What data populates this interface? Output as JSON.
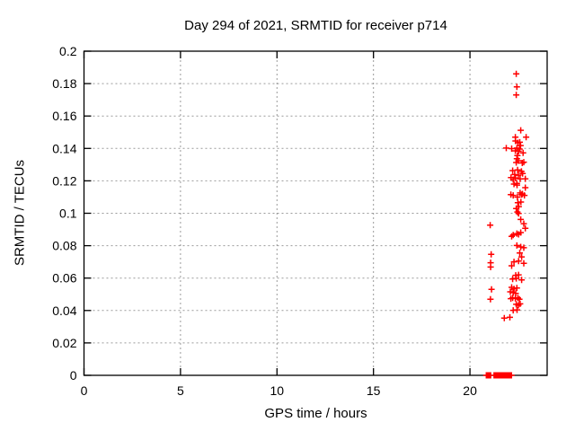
{
  "chart_data": {
    "type": "scatter",
    "title": "Day 294 of 2021, SRMTID for receiver p714",
    "xlabel": "GPS time / hours",
    "ylabel": "SRMTID / TECUs",
    "xlim": [
      0,
      24
    ],
    "ylim": [
      0,
      0.2
    ],
    "xticks": [
      0,
      5,
      10,
      15,
      20
    ],
    "xtick_labels": [
      "0",
      "5",
      "10",
      "15",
      "20"
    ],
    "yticks": [
      0,
      0.02,
      0.04,
      0.06,
      0.08,
      0.1,
      0.12,
      0.14,
      0.16,
      0.18,
      0.2
    ],
    "ytick_labels": [
      "0",
      "0.02",
      "0.04",
      "0.06",
      "0.08",
      "0.1",
      "0.12",
      "0.14",
      "0.16",
      "0.18",
      "0.2"
    ],
    "grid": true,
    "legend_position": "none",
    "marker": "plus",
    "marker_color": "#ff0000",
    "axis_color": "#000000",
    "grid_color": "#9a9a9a",
    "series": [
      {
        "name": "SRMTID",
        "points": [
          [
            22.4,
            0.186
          ],
          [
            22.43,
            0.178
          ],
          [
            22.4,
            0.173
          ],
          [
            22.63,
            0.1512
          ],
          [
            22.35,
            0.147
          ],
          [
            22.91,
            0.147
          ],
          [
            22.36,
            0.1446
          ],
          [
            22.58,
            0.1438
          ],
          [
            22.48,
            0.1435
          ],
          [
            22.62,
            0.1418
          ],
          [
            21.88,
            0.1402
          ],
          [
            22.43,
            0.1402
          ],
          [
            22.16,
            0.1399
          ],
          [
            22.57,
            0.1396
          ],
          [
            22.35,
            0.1385
          ],
          [
            22.52,
            0.1383
          ],
          [
            22.75,
            0.1373
          ],
          [
            22.46,
            0.1356
          ],
          [
            22.43,
            0.1337
          ],
          [
            22.51,
            0.1324
          ],
          [
            22.79,
            0.1315
          ],
          [
            22.4,
            0.1313
          ],
          [
            22.71,
            0.131
          ],
          [
            22.47,
            0.1267
          ],
          [
            22.21,
            0.1263
          ],
          [
            22.67,
            0.1258
          ],
          [
            22.73,
            0.1245
          ],
          [
            22.32,
            0.1239
          ],
          [
            22.51,
            0.1235
          ],
          [
            22.13,
            0.122
          ],
          [
            22.36,
            0.1217
          ],
          [
            22.87,
            0.1213
          ],
          [
            22.6,
            0.1212
          ],
          [
            22.24,
            0.1208
          ],
          [
            22.43,
            0.1184
          ],
          [
            22.28,
            0.118
          ],
          [
            22.44,
            0.1174
          ],
          [
            22.87,
            0.1158
          ],
          [
            22.6,
            0.1125
          ],
          [
            22.72,
            0.1119
          ],
          [
            22.12,
            0.1115
          ],
          [
            22.68,
            0.1115
          ],
          [
            22.24,
            0.111
          ],
          [
            22.82,
            0.111
          ],
          [
            22.46,
            0.11
          ],
          [
            22.64,
            0.1069
          ],
          [
            22.48,
            0.1065
          ],
          [
            22.53,
            0.1041
          ],
          [
            22.4,
            0.1029
          ],
          [
            22.46,
            0.1008
          ],
          [
            22.52,
            0.0999
          ],
          [
            22.63,
            0.0962
          ],
          [
            22.79,
            0.0936
          ],
          [
            21.05,
            0.0927
          ],
          [
            22.87,
            0.0907
          ],
          [
            22.63,
            0.0881
          ],
          [
            22.43,
            0.0875
          ],
          [
            22.52,
            0.087
          ],
          [
            22.24,
            0.0866
          ],
          [
            22.16,
            0.0857
          ],
          [
            22.43,
            0.0801
          ],
          [
            22.63,
            0.0792
          ],
          [
            22.79,
            0.0787
          ],
          [
            22.58,
            0.0755
          ],
          [
            21.1,
            0.0746
          ],
          [
            22.68,
            0.0731
          ],
          [
            22.52,
            0.0705
          ],
          [
            22.28,
            0.07
          ],
          [
            21.07,
            0.0695
          ],
          [
            22.79,
            0.0691
          ],
          [
            22.16,
            0.0676
          ],
          [
            21.07,
            0.0668
          ],
          [
            22.52,
            0.062
          ],
          [
            22.37,
            0.0617
          ],
          [
            22.4,
            0.0598
          ],
          [
            22.21,
            0.0594
          ],
          [
            22.68,
            0.0589
          ],
          [
            22.16,
            0.0543
          ],
          [
            22.43,
            0.0539
          ],
          [
            21.12,
            0.053
          ],
          [
            22.28,
            0.0533
          ],
          [
            22.09,
            0.0515
          ],
          [
            22.24,
            0.051
          ],
          [
            22.37,
            0.0506
          ],
          [
            22.21,
            0.0478
          ],
          [
            22.48,
            0.0478
          ],
          [
            22.35,
            0.0475
          ],
          [
            22.12,
            0.0473
          ],
          [
            21.06,
            0.047
          ],
          [
            22.56,
            0.0469
          ],
          [
            22.6,
            0.0441
          ],
          [
            22.4,
            0.0438
          ],
          [
            22.51,
            0.0432
          ],
          [
            22.44,
            0.0404
          ],
          [
            22.24,
            0.0401
          ],
          [
            22.07,
            0.0358
          ],
          [
            21.78,
            0.0353
          ]
        ]
      }
    ],
    "baseline_bands": [
      {
        "y": 0,
        "x_start": 20.85,
        "x_end": 21.07,
        "step": 0.02
      },
      {
        "y": 0,
        "x_start": 21.25,
        "x_end": 22.15,
        "step": 0.02
      }
    ]
  }
}
